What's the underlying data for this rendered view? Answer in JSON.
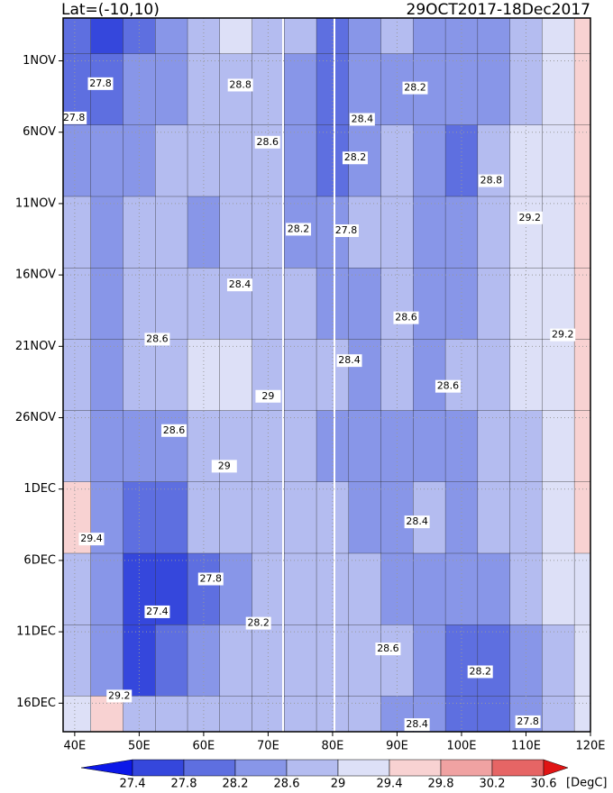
{
  "chart_data": {
    "type": "heatmap",
    "title": "Lat=(-10,10)",
    "subtitle": "29OCT2017-18Dec2017",
    "colorbar_unit": "[DegC]",
    "x": [
      40,
      45,
      50,
      55,
      60,
      65,
      70,
      75,
      80,
      85,
      90,
      95,
      100,
      105,
      110,
      115,
      120
    ],
    "y": [
      0,
      5,
      10,
      15,
      20,
      25,
      30,
      35,
      40,
      45,
      50
    ],
    "z": [
      [
        27.8,
        27.6,
        27.9,
        28.4,
        28.8,
        29.0,
        28.9,
        28.6,
        28.0,
        28.3,
        28.6,
        28.4,
        28.2,
        28.4,
        28.8,
        29.0,
        29.4
      ],
      [
        27.9,
        27.8,
        28.2,
        28.5,
        28.7,
        28.8,
        28.7,
        28.4,
        28.0,
        28.4,
        28.4,
        28.5,
        28.2,
        28.5,
        28.9,
        29.1,
        29.5
      ],
      [
        28.2,
        28.3,
        28.5,
        28.6,
        28.7,
        28.8,
        28.6,
        28.2,
        27.9,
        28.5,
        28.6,
        28.5,
        28.1,
        28.6,
        29.0,
        29.2,
        29.6
      ],
      [
        28.6,
        28.5,
        28.6,
        28.6,
        28.5,
        28.6,
        28.7,
        28.5,
        28.3,
        28.6,
        28.6,
        28.5,
        28.4,
        28.7,
        29.0,
        29.2,
        29.5
      ],
      [
        28.6,
        28.5,
        28.6,
        28.7,
        28.6,
        28.7,
        28.8,
        28.6,
        28.5,
        28.5,
        28.6,
        28.5,
        28.5,
        28.8,
        29.0,
        29.2,
        29.4
      ],
      [
        28.8,
        28.5,
        28.6,
        28.7,
        29.1,
        29.0,
        28.8,
        28.7,
        28.6,
        28.5,
        28.6,
        28.5,
        28.6,
        28.8,
        29.0,
        29.2,
        29.5
      ],
      [
        28.8,
        28.5,
        28.2,
        28.4,
        28.8,
        28.9,
        28.7,
        28.6,
        28.4,
        28.5,
        28.5,
        28.4,
        28.5,
        28.6,
        28.9,
        29.1,
        29.4
      ],
      [
        29.4,
        28.4,
        27.8,
        28.0,
        28.6,
        28.8,
        28.7,
        28.7,
        28.6,
        28.5,
        28.4,
        28.6,
        28.4,
        28.6,
        28.8,
        29.1,
        29.4
      ],
      [
        28.8,
        28.2,
        27.4,
        27.6,
        27.8,
        28.4,
        28.6,
        28.7,
        28.6,
        28.6,
        28.5,
        28.4,
        28.3,
        28.4,
        28.7,
        29.0,
        29.3
      ],
      [
        28.6,
        28.2,
        27.7,
        28.0,
        28.2,
        28.6,
        28.8,
        28.7,
        28.6,
        28.7,
        28.6,
        28.4,
        28.1,
        27.9,
        28.4,
        28.9,
        29.2
      ],
      [
        29.2,
        29.4,
        28.8,
        28.7,
        28.8,
        28.9,
        28.8,
        28.6,
        28.7,
        28.6,
        28.4,
        28.3,
        28.1,
        27.8,
        28.2,
        28.8,
        29.2
      ]
    ],
    "xlim": [
      38.2,
      120
    ],
    "ylim": [
      0,
      50
    ],
    "xticks": [
      {
        "value": 40,
        "label": "40E"
      },
      {
        "value": 50,
        "label": "50E"
      },
      {
        "value": 60,
        "label": "60E"
      },
      {
        "value": 70,
        "label": "70E"
      },
      {
        "value": 80,
        "label": "80E"
      },
      {
        "value": 90,
        "label": "90E"
      },
      {
        "value": 100,
        "label": "100E"
      },
      {
        "value": 110,
        "label": "110E"
      },
      {
        "value": 120,
        "label": "120E"
      }
    ],
    "yticks": [
      {
        "value": 3,
        "label": "1NOV"
      },
      {
        "value": 8,
        "label": "6NOV"
      },
      {
        "value": 13,
        "label": "11NOV"
      },
      {
        "value": 18,
        "label": "16NOV"
      },
      {
        "value": 23,
        "label": "21NOV"
      },
      {
        "value": 28,
        "label": "26NOV"
      },
      {
        "value": 33,
        "label": "1DEC"
      },
      {
        "value": 38,
        "label": "6DEC"
      },
      {
        "value": 43,
        "label": "11DEC"
      },
      {
        "value": 48,
        "label": "16DEC"
      }
    ],
    "grid": true,
    "levels": [
      27.4,
      27.8,
      28.2,
      28.6,
      29,
      29.4,
      29.8,
      30.2,
      30.6
    ],
    "colors": [
      "#0c18e8",
      "#3547dc",
      "#5e6fe0",
      "#8896e8",
      "#b4bcf0",
      "#dde0f7",
      "#f8d2d2",
      "#f0a2a2",
      "#e66565",
      "#e01414"
    ],
    "contour_labels": [
      {
        "x": 44.0,
        "y": 4.6,
        "value": 27.8
      },
      {
        "x": 39.9,
        "y": 7.0,
        "value": 27.8
      },
      {
        "x": 65.7,
        "y": 4.7,
        "value": 28.8
      },
      {
        "x": 92.8,
        "y": 4.9,
        "value": 28.2
      },
      {
        "x": 84.6,
        "y": 7.1,
        "value": 28.4
      },
      {
        "x": 69.9,
        "y": 8.7,
        "value": 28.6
      },
      {
        "x": 83.5,
        "y": 9.8,
        "value": 28.2
      },
      {
        "x": 104.6,
        "y": 11.4,
        "value": 28.8
      },
      {
        "x": 74.7,
        "y": 14.8,
        "value": 28.2
      },
      {
        "x": 82.1,
        "y": 14.9,
        "value": 27.8
      },
      {
        "x": 110.6,
        "y": 14.0,
        "value": 29.2
      },
      {
        "x": 65.6,
        "y": 18.7,
        "value": 28.4
      },
      {
        "x": 91.4,
        "y": 21.0,
        "value": 28.6
      },
      {
        "x": 115.7,
        "y": 22.2,
        "value": 29.2
      },
      {
        "x": 52.8,
        "y": 22.5,
        "value": 28.6
      },
      {
        "x": 82.6,
        "y": 24.0,
        "value": 28.4
      },
      {
        "x": 97.9,
        "y": 25.8,
        "value": 28.6
      },
      {
        "x": 70.0,
        "y": 26.5,
        "value": 29
      },
      {
        "x": 55.4,
        "y": 28.9,
        "value": 28.6
      },
      {
        "x": 63.2,
        "y": 31.4,
        "value": 29
      },
      {
        "x": 93.1,
        "y": 35.3,
        "value": 28.4
      },
      {
        "x": 42.6,
        "y": 36.5,
        "value": 29.4
      },
      {
        "x": 61.1,
        "y": 39.3,
        "value": 27.8
      },
      {
        "x": 52.8,
        "y": 41.6,
        "value": 27.4
      },
      {
        "x": 68.5,
        "y": 42.4,
        "value": 28.2
      },
      {
        "x": 88.6,
        "y": 44.2,
        "value": 28.6
      },
      {
        "x": 102.9,
        "y": 45.8,
        "value": 28.2
      },
      {
        "x": 46.9,
        "y": 47.5,
        "value": 29.2
      },
      {
        "x": 110.3,
        "y": 49.3,
        "value": 27.8
      },
      {
        "x": 93.1,
        "y": 49.5,
        "value": 28.4
      }
    ]
  }
}
